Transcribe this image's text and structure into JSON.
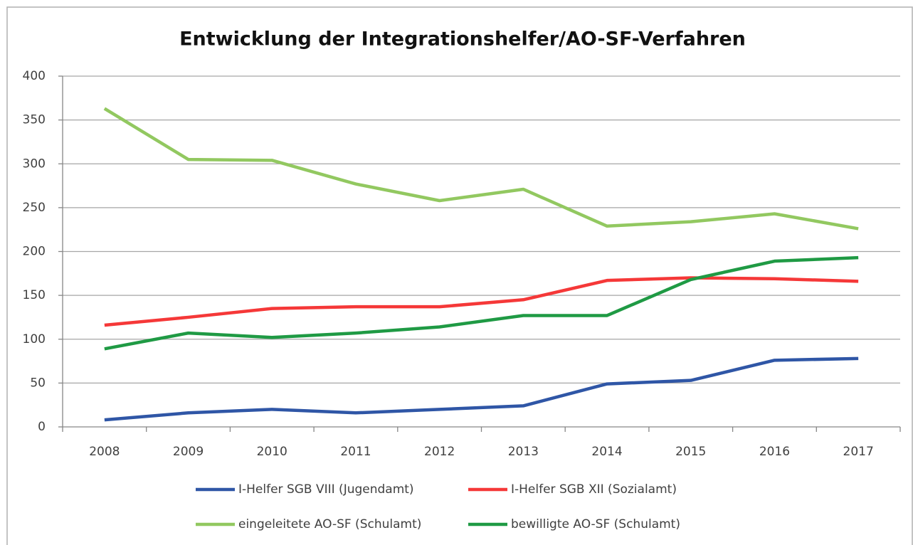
{
  "chart_data": {
    "type": "line",
    "title": "Entwicklung der Integrationshelfer/AO-SF-Verfahren",
    "categories": [
      "2008",
      "2009",
      "2010",
      "2011",
      "2012",
      "2013",
      "2014",
      "2015",
      "2016",
      "2017"
    ],
    "series": [
      {
        "name": "I-Helfer SGB VIII (Jugendamt)",
        "color": "#2f56a6",
        "values": [
          8,
          16,
          20,
          16,
          20,
          24,
          49,
          53,
          76,
          78
        ]
      },
      {
        "name": "I-Helfer SGB XII (Sozialamt)",
        "color": "#f53838",
        "values": [
          116,
          125,
          135,
          137,
          137,
          145,
          167,
          170,
          169,
          166
        ]
      },
      {
        "name": "eingeleitete AO-SF (Schulamt)",
        "color": "#92c860",
        "values": [
          363,
          305,
          304,
          277,
          258,
          271,
          229,
          234,
          243,
          226
        ]
      },
      {
        "name": "bewilligte AO-SF (Schulamt)",
        "color": "#1f9a44",
        "values": [
          89,
          107,
          102,
          107,
          114,
          127,
          127,
          168,
          189,
          193
        ]
      }
    ],
    "ylim": [
      0,
      400
    ],
    "yticks": [
      0,
      50,
      100,
      150,
      200,
      250,
      300,
      350,
      400
    ],
    "grid": true
  }
}
